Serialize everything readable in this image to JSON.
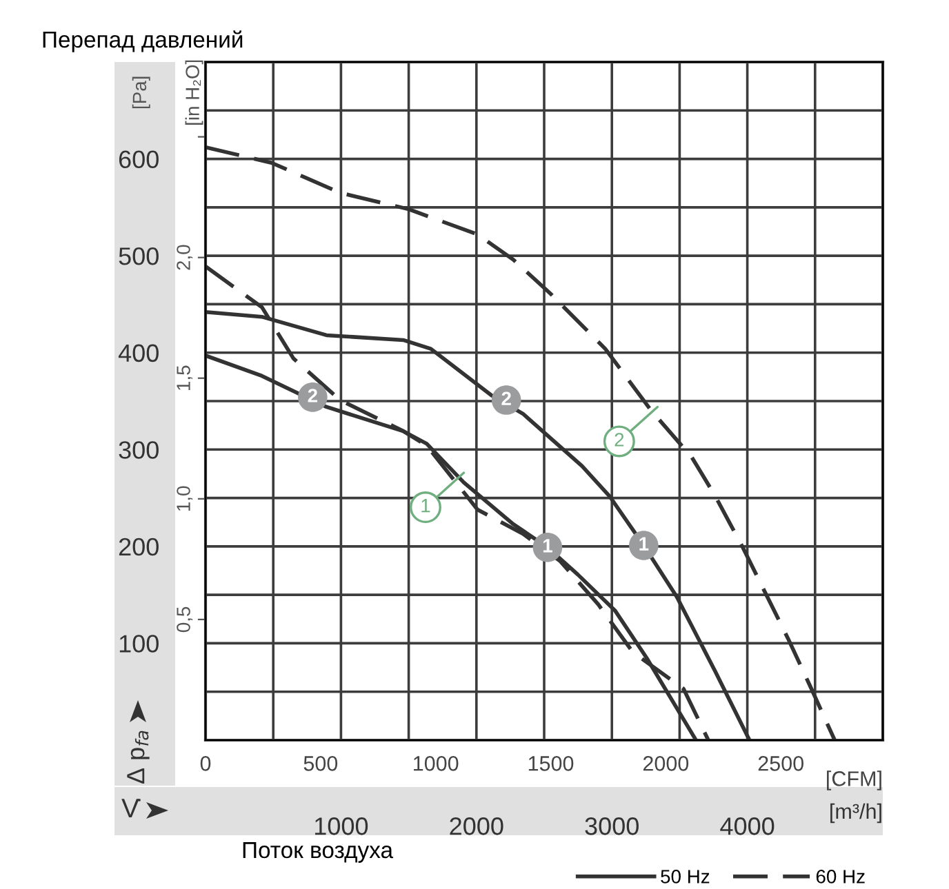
{
  "chart_data": {
    "type": "line",
    "title": "Перепад давлений",
    "xlabel": "Поток воздуха",
    "ylabel": "[Pa]",
    "y2label": "[in H₂O]",
    "x2label": "[CFM]",
    "x": [
      0,
      416,
      893,
      1460,
      1663,
      2110,
      2343,
      2779,
      2982,
      3235,
      3479,
      3763,
      4016
    ],
    "series": [
      {
        "name": "50 Hz",
        "color": "#333333",
        "line_style": "solid",
        "values": [
          442,
          437,
          418,
          413,
          404,
          356,
          337,
          283,
          252,
          201,
          148,
          71,
          0
        ]
      },
      {
        "color": "#333333",
        "line_style": "solid",
        "x": [
          0,
          416,
          893,
          1460,
          1633,
          1907,
          2272,
          2525,
          2748,
          3022,
          3256,
          3458,
          3621
        ],
        "values": [
          397,
          376,
          344,
          319,
          306,
          266,
          223,
          199,
          171,
          134,
          85,
          38,
          0
        ]
      },
      {
        "name": "60 Hz",
        "color": "#333333",
        "line_style": "dashed",
        "x": [
          0,
          416,
          649,
          994,
          1460,
          1633,
          2008,
          2343,
          2617,
          2900,
          3154,
          3529,
          3712
        ],
        "values": [
          489,
          447,
          394,
          351,
          319,
          304,
          238,
          213,
          185,
          140,
          91,
          53,
          0
        ]
      },
      {
        "color": "#333333",
        "line_style": "dashed",
        "x": [
          0,
          487,
          994,
          1501,
          2008,
          2272,
          2546,
          2951,
          3286,
          3590,
          3763,
          3966,
          4300,
          4473,
          4645
        ],
        "values": [
          612,
          596,
          565,
          548,
          522,
          496,
          461,
          404,
          341,
          292,
          252,
          199,
          105,
          53,
          0
        ]
      }
    ],
    "xlim": [
      0,
      5000
    ],
    "ylim": [
      0,
      700
    ],
    "xticks": [
      {
        "value": 500,
        "label": null
      },
      1000,
      {
        "value": 1500,
        "label": null
      },
      2000,
      {
        "value": 2500,
        "label": null
      },
      3000,
      {
        "value": 3500,
        "label": null
      },
      4000,
      {
        "value": 4500,
        "label": null
      }
    ],
    "yticks": [
      {
        "value": 50,
        "label": null
      },
      100,
      {
        "value": 150,
        "label": null
      },
      200,
      {
        "value": 250,
        "label": null
      },
      300,
      {
        "value": 350,
        "label": null
      },
      400,
      {
        "value": 450,
        "label": null
      },
      500,
      {
        "value": 550,
        "label": null
      },
      600,
      {
        "value": 650,
        "label": null
      }
    ],
    "x2lim": [
      0,
      2943
    ],
    "x2ticks": [
      0,
      500,
      1000,
      1500,
      2000,
      2500
    ],
    "y2lim": [
      0,
      2.81
    ],
    "y2ticks": [
      {
        "value": 0.5,
        "label": "0,5"
      },
      {
        "value": 1.0,
        "label": "1,0"
      },
      {
        "value": 1.5,
        "label": "1,5"
      },
      {
        "value": 2.0,
        "label": "2,0"
      },
      {
        "value": 2.5,
        "label": null
      }
    ],
    "grid": true,
    "legend": "bottom",
    "marker": "none",
    "annotations": [
      "[m³/h]",
      "Δ p$_{fa}$",
      "V̇",
      {
        "text": "2",
        "x": 791,
        "y": 354
      },
      {
        "text": "2",
        "x": 2221,
        "y": 351
      },
      {
        "text": "1",
        "x": 2525,
        "y": 199
      },
      {
        "text": "1",
        "x": 3235,
        "y": 201
      },
      {
        "text": "1",
        "x": 1907,
        "y": 276
      },
      {
        "text": "2",
        "x": 3337,
        "y": 344
      }
    ]
  }
}
